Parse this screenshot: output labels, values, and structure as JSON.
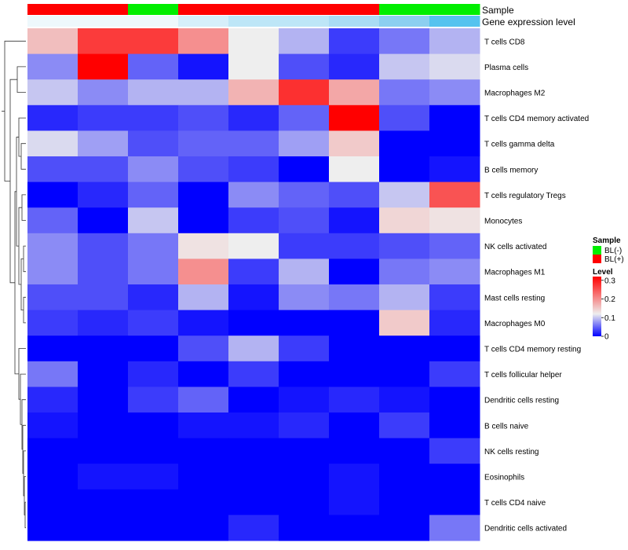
{
  "chart_data": {
    "type": "heatmap",
    "title": "",
    "annotation_tracks": [
      {
        "name": "Sample",
        "levels": [
          {
            "label": "BL(-)",
            "color": "#00ee00"
          },
          {
            "label": "BL(+)",
            "color": "#ff0000"
          }
        ],
        "values": [
          "BL(+)",
          "BL(+)",
          "BL(-)",
          "BL(+)",
          "BL(+)",
          "BL(+)",
          "BL(+)",
          "BL(-)",
          "BL(-)"
        ]
      },
      {
        "name": "Gene expression level",
        "values": [
          0,
          0,
          0,
          1,
          2,
          2,
          3,
          4,
          5
        ]
      }
    ],
    "rows": [
      "T cells CD8",
      "Plasma cells",
      "Macrophages M2",
      "T cells CD4 memory activated",
      "T cells gamma delta",
      "B cells memory",
      "T cells regulatory  Tregs",
      "Monocytes",
      "NK cells activated",
      "Macrophages M1",
      "Mast cells resting",
      "Macrophages M0",
      "T cells CD4 memory resting",
      "T cells follicular helper",
      "Dendritic cells resting",
      "B cells naive",
      "NK cells resting",
      "Eosinophils",
      "T cells CD4 naive",
      "Dendritic cells activated"
    ],
    "values": [
      [
        0.16,
        0.27,
        0.27,
        0.2,
        0.12,
        0.09,
        0.03,
        0.06,
        0.09
      ],
      [
        0.07,
        0.32,
        0.05,
        0.01,
        0.12,
        0.04,
        0.02,
        0.1,
        0.11
      ],
      [
        0.1,
        0.07,
        0.09,
        0.09,
        0.17,
        0.28,
        0.18,
        0.06,
        0.07
      ],
      [
        0.02,
        0.03,
        0.03,
        0.04,
        0.02,
        0.05,
        0.32,
        0.04,
        0.0
      ],
      [
        0.11,
        0.08,
        0.04,
        0.05,
        0.05,
        0.08,
        0.15,
        0.0,
        0.0
      ],
      [
        0.04,
        0.04,
        0.07,
        0.04,
        0.03,
        0.0,
        0.12,
        0.0,
        0.01
      ],
      [
        0.0,
        0.02,
        0.05,
        0.0,
        0.07,
        0.05,
        0.04,
        0.1,
        0.25
      ],
      [
        0.05,
        0.0,
        0.1,
        0.0,
        0.03,
        0.04,
        0.01,
        0.14,
        0.13
      ],
      [
        0.07,
        0.04,
        0.06,
        0.13,
        0.12,
        0.03,
        0.03,
        0.04,
        0.05
      ],
      [
        0.07,
        0.04,
        0.06,
        0.2,
        0.03,
        0.09,
        0.0,
        0.06,
        0.07
      ],
      [
        0.04,
        0.04,
        0.02,
        0.09,
        0.01,
        0.07,
        0.06,
        0.09,
        0.03
      ],
      [
        0.03,
        0.02,
        0.03,
        0.01,
        0.0,
        0.0,
        0.0,
        0.15,
        0.02
      ],
      [
        0.0,
        0.0,
        0.0,
        0.04,
        0.09,
        0.03,
        0.0,
        0.0,
        0.0
      ],
      [
        0.06,
        0.0,
        0.02,
        0.0,
        0.03,
        0.0,
        0.0,
        0.0,
        0.03
      ],
      [
        0.02,
        0.0,
        0.03,
        0.05,
        0.0,
        0.01,
        0.02,
        0.01,
        0.0
      ],
      [
        0.01,
        0.0,
        0.0,
        0.01,
        0.01,
        0.02,
        0.0,
        0.03,
        0.0
      ],
      [
        0.0,
        0.0,
        0.0,
        0.0,
        0.0,
        0.0,
        0.0,
        0.0,
        0.03
      ],
      [
        0.0,
        0.01,
        0.01,
        0.0,
        0.0,
        0.0,
        0.01,
        0.0,
        0.0
      ],
      [
        0.0,
        0.0,
        0.0,
        0.0,
        0.0,
        0.0,
        0.01,
        0.0,
        0.0
      ],
      [
        0.0,
        0.0,
        0.0,
        0.0,
        0.02,
        0.0,
        0.0,
        0.0,
        0.06
      ]
    ],
    "color_scale": {
      "colors": [
        "#0000ff",
        "#eeeeee",
        "#ff0000"
      ],
      "domain": [
        0,
        0.12,
        0.32
      ]
    },
    "expression_level_colors": [
      "#eef8fc",
      "#d6effa",
      "#bde6f7",
      "#a9dcf4",
      "#8ccff0",
      "#55c3ef"
    ],
    "legends": [
      {
        "title": "Sample",
        "items": [
          "BL(-)",
          "BL(+)"
        ]
      },
      {
        "title": "Level",
        "ticks": [
          "0.3",
          "0.2",
          "0.1",
          "0"
        ],
        "tick_values": [
          0.3,
          0.2,
          0.1,
          0
        ]
      }
    ],
    "row_dendrogram": true
  }
}
